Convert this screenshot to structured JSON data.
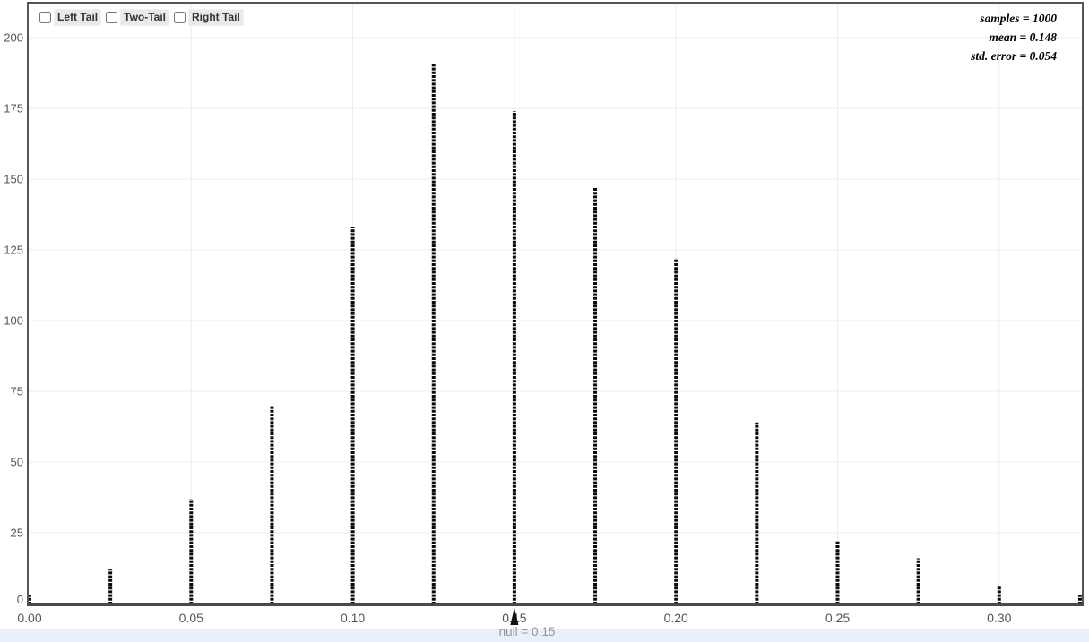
{
  "controls": {
    "checkboxes": [
      {
        "id": "left-tail",
        "label": "Left Tail",
        "checked": false
      },
      {
        "id": "two-tail",
        "label": "Two-Tail",
        "checked": false
      },
      {
        "id": "right-tail",
        "label": "Right Tail",
        "checked": false
      }
    ]
  },
  "stats_annotation": {
    "lines": [
      "samples = 1000",
      "mean = 0.148",
      "std. error = 0.054"
    ]
  },
  "null_marker": {
    "label": "null = 0.15",
    "value": 0.15
  },
  "colors": {
    "needle": "#0a0a0a",
    "frame": "#555555",
    "axis": "#4a4a4a",
    "grid": "#ececec",
    "tick_text": "#555555",
    "null_text": "#8f979e",
    "marker": "#111111",
    "bottom_strip": "#e8f1fa"
  },
  "chart_data": {
    "type": "bar",
    "style": "needle-histogram (dotted vertical needles, sampling distribution of sample proportion)",
    "title": "",
    "xlabel": "",
    "ylabel": "",
    "x": [
      0.0,
      0.025,
      0.05,
      0.075,
      0.1,
      0.125,
      0.15,
      0.175,
      0.2,
      0.225,
      0.25,
      0.275,
      0.3,
      0.325
    ],
    "values": [
      3,
      12,
      37,
      70,
      133,
      191,
      174,
      147,
      122,
      64,
      22,
      16,
      6,
      3
    ],
    "x_ticks": [
      {
        "v": 0.0,
        "label": "0.00"
      },
      {
        "v": 0.05,
        "label": "0.05"
      },
      {
        "v": 0.1,
        "label": "0.10"
      },
      {
        "v": 0.15,
        "label": "0.15"
      },
      {
        "v": 0.2,
        "label": "0.20"
      },
      {
        "v": 0.25,
        "label": "0.25"
      },
      {
        "v": 0.3,
        "label": "0.30"
      }
    ],
    "y_ticks": [
      {
        "v": 0,
        "label": "0"
      },
      {
        "v": 25,
        "label": "25"
      },
      {
        "v": 50,
        "label": "50"
      },
      {
        "v": 75,
        "label": "75"
      },
      {
        "v": 100,
        "label": "100"
      },
      {
        "v": 125,
        "label": "125"
      },
      {
        "v": 150,
        "label": "150"
      },
      {
        "v": 175,
        "label": "175"
      },
      {
        "v": 200,
        "label": "200"
      }
    ],
    "xlim": [
      0,
      0.326
    ],
    "ylim": [
      0,
      212
    ],
    "grid": true,
    "legend_position": "none",
    "annotations": [
      "samples = 1000",
      "mean = 0.148",
      "std. error = 0.054",
      "null = 0.15"
    ]
  }
}
